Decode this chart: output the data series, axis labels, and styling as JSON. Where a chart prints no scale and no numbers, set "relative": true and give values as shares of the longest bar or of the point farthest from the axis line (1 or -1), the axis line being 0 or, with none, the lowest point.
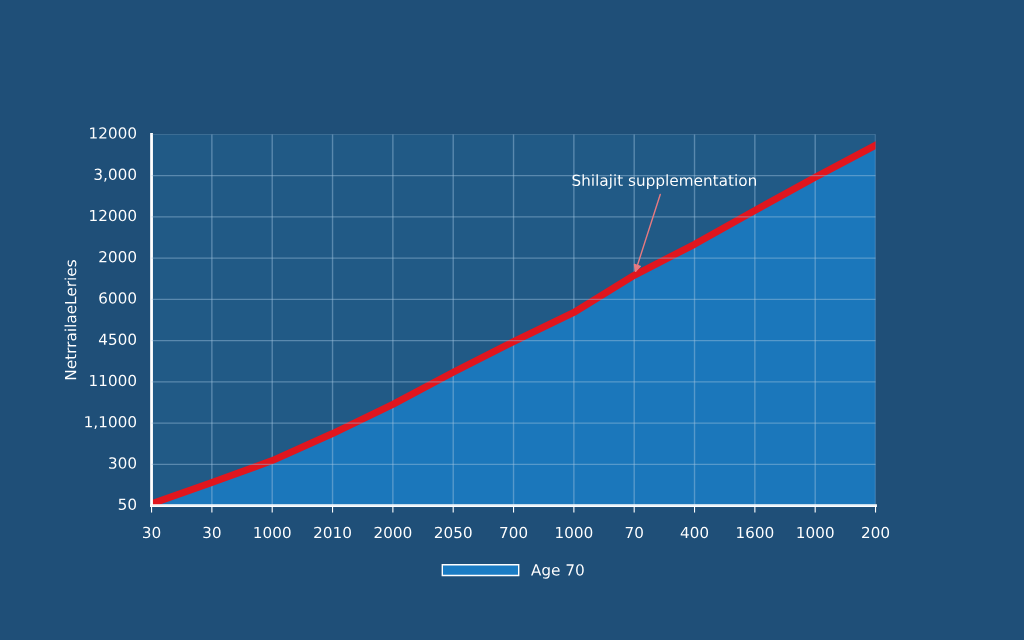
{
  "chart_data": {
    "type": "area",
    "relative": true,
    "ylabel": "NetrrailaeLeries",
    "categories": [
      "30",
      "30",
      "1000",
      "2010",
      "2000",
      "2050",
      "700",
      "1000",
      "70",
      "400",
      "1600",
      "1000",
      "200"
    ],
    "series": [
      {
        "name": "Age 70",
        "color": "#1a7cc4",
        "values": [
          0.005,
          0.064,
          0.125,
          0.2,
          0.281,
          0.37,
          0.455,
          0.536,
          0.639,
          0.725,
          0.819,
          0.911,
          1
        ]
      },
      {
        "type": "line",
        "color": "#e0161e",
        "values": [
          0.005,
          0.064,
          0.125,
          0.2,
          0.281,
          0.37,
          0.455,
          0.536,
          0.639,
          0.725,
          0.819,
          0.911,
          1
        ]
      }
    ],
    "annotations": [
      {
        "text": "Shilajit supplementation",
        "x": "70",
        "y": 0.639
      },
      "50",
      "300",
      "1,1000",
      "11000",
      "4500",
      "6000",
      "2000",
      "12000",
      "3,000",
      "12000"
    ],
    "grid": true,
    "legend": "bottom",
    "marker": "none",
    "line_style": "solid"
  }
}
